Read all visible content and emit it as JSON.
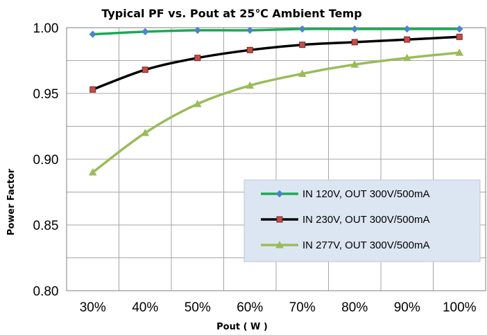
{
  "chart_data": {
    "type": "line",
    "title": "Typical PF vs. Pout at 25℃  Ambient Temp",
    "xlabel": "Pout ( W )",
    "ylabel": "Power Factor",
    "categories": [
      "30%",
      "40%",
      "50%",
      "60%",
      "70%",
      "80%",
      "90%",
      "100%"
    ],
    "ylim": [
      0.8,
      1.0
    ],
    "yticks": [
      "0.80",
      "0.85",
      "0.90",
      "0.95",
      "1.00"
    ],
    "grid": true,
    "legend_position": "right",
    "series": [
      {
        "name": "IN 120V, OUT 300V/500mA",
        "color": "#1aaa55",
        "marker": "diamond",
        "marker_color": "#4a86c5",
        "values": [
          0.995,
          0.997,
          0.998,
          0.998,
          0.999,
          0.999,
          0.999,
          0.999
        ]
      },
      {
        "name": "IN 230V, OUT 300V/500mA",
        "color": "#000000",
        "marker": "square",
        "marker_color": "#c0504d",
        "values": [
          0.953,
          0.968,
          0.977,
          0.983,
          0.987,
          0.989,
          0.991,
          0.993
        ]
      },
      {
        "name": "IN 277V, OUT 300V/500mA",
        "color": "#9bbb59",
        "marker": "triangle",
        "marker_color": "#9bbb59",
        "values": [
          0.89,
          0.92,
          0.942,
          0.956,
          0.965,
          0.972,
          0.977,
          0.981
        ]
      }
    ]
  }
}
